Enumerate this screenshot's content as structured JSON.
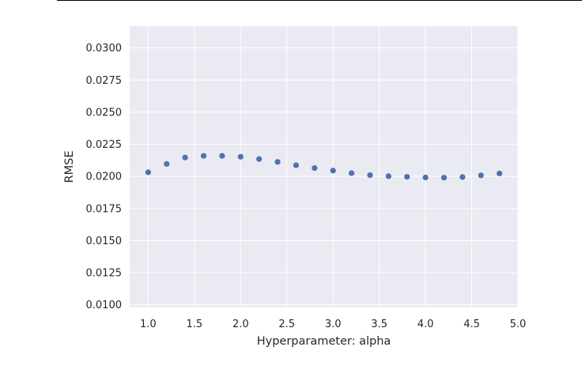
{
  "chart_data": {
    "type": "scatter",
    "title": "",
    "xlabel": "Hyperparameter: alpha",
    "ylabel": "RMSE",
    "xlim": [
      0.8,
      5.0
    ],
    "ylim": [
      0.0098,
      0.0317
    ],
    "xticks": [
      1.0,
      1.5,
      2.0,
      2.5,
      3.0,
      3.5,
      4.0,
      4.5,
      5.0
    ],
    "xtick_labels": [
      "1.0",
      "1.5",
      "2.0",
      "2.5",
      "3.0",
      "3.5",
      "4.0",
      "4.5",
      "5.0"
    ],
    "yticks": [
      0.01,
      0.0125,
      0.015,
      0.0175,
      0.02,
      0.0225,
      0.025,
      0.0275,
      0.03
    ],
    "ytick_labels": [
      "0.0100",
      "0.0125",
      "0.0150",
      "0.0175",
      "0.0200",
      "0.0225",
      "0.0250",
      "0.0275",
      "0.0300"
    ],
    "grid": true,
    "series": [
      {
        "color": "#4c72b0",
        "x": [
          1.0,
          1.2,
          1.4,
          1.6,
          1.8,
          2.0,
          2.2,
          2.4,
          2.6,
          2.8,
          3.0,
          3.2,
          3.4,
          3.6,
          3.8,
          4.0,
          4.2,
          4.4,
          4.6,
          4.8
        ],
        "y": [
          0.02032,
          0.02097,
          0.02147,
          0.0216,
          0.0216,
          0.02153,
          0.02135,
          0.02113,
          0.02087,
          0.02065,
          0.02045,
          0.02025,
          0.0201,
          0.02002,
          0.01997,
          0.01992,
          0.0199,
          0.01995,
          0.02008,
          0.02023
        ]
      }
    ]
  },
  "colors": {
    "plot_background": "#eaeaf2",
    "grid": "#ffffff",
    "marker": "#4c72b0",
    "text": "#262626"
  }
}
